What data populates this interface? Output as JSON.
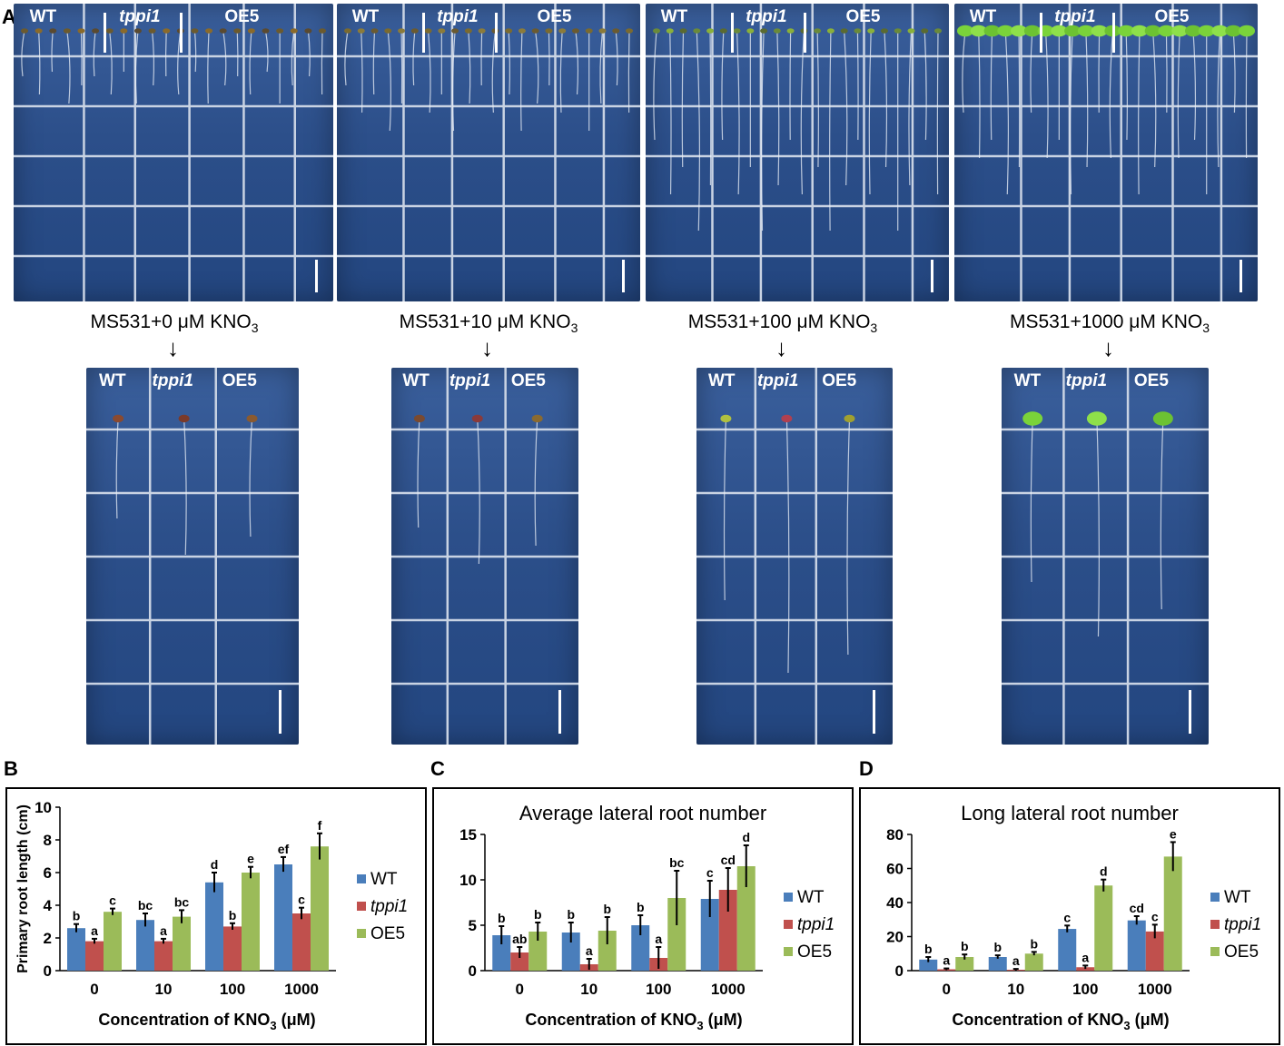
{
  "figure": {
    "panel_a": {
      "letter": "A",
      "genotype_labels": [
        "WT",
        "tppi1",
        "OE5"
      ],
      "media": [
        {
          "text": "MS531+0 μM KNO",
          "sub": "3"
        },
        {
          "text": "MS531+10 μM KNO",
          "sub": "3"
        },
        {
          "text": "MS531+100 μM KNO",
          "sub": "3"
        },
        {
          "text": "MS531+1000 μM KNO",
          "sub": "3"
        }
      ],
      "arrow": "↓",
      "plate_colors": {
        "medium": "#2c4f8a",
        "grid": "#c9d3e3",
        "seedling_leaf": "#7ad33a"
      }
    },
    "panel_letters": {
      "b": "B",
      "c": "C",
      "d": "D"
    }
  },
  "chart_data": [
    {
      "type": "bar",
      "panel": "B",
      "title": "",
      "ylabel": "Primary root length (cm)",
      "xlabel": "Concentration of KNO3 (μM)",
      "xlabel_main": "Concentration of KNO",
      "xlabel_sub": "3",
      "xlabel_unit": " (μM)",
      "categories": [
        "0",
        "10",
        "100",
        "1000"
      ],
      "ylim": [
        0,
        10
      ],
      "yticks": [
        0,
        2,
        4,
        6,
        8,
        10
      ],
      "series": [
        {
          "name": "WT",
          "color": "#4a7ebb",
          "values": [
            2.6,
            3.1,
            5.4,
            6.5
          ],
          "errors": [
            0.25,
            0.4,
            0.6,
            0.45
          ],
          "letters": [
            "b",
            "bc",
            "d",
            "ef"
          ]
        },
        {
          "name": "tppi1",
          "color": "#c0504d",
          "values": [
            1.8,
            1.8,
            2.7,
            3.5
          ],
          "errors": [
            0.15,
            0.15,
            0.2,
            0.35
          ],
          "letters": [
            "a",
            "a",
            "b",
            "c"
          ]
        },
        {
          "name": "OE5",
          "color": "#9bbb59",
          "values": [
            3.6,
            3.3,
            6.0,
            7.6
          ],
          "errors": [
            0.2,
            0.4,
            0.35,
            0.8
          ],
          "letters": [
            "c",
            "bc",
            "e",
            "f"
          ]
        }
      ],
      "legend": "right"
    },
    {
      "type": "bar",
      "panel": "C",
      "title": "Average lateral root number",
      "ylabel": "",
      "xlabel": "Concentration of KNO3 (μM)",
      "xlabel_main": "Concentration of KNO",
      "xlabel_sub": "3",
      "xlabel_unit": " (μM)",
      "categories": [
        "0",
        "10",
        "100",
        "1000"
      ],
      "ylim": [
        0,
        15
      ],
      "yticks": [
        0,
        5,
        10,
        15
      ],
      "series": [
        {
          "name": "WT",
          "color": "#4a7ebb",
          "values": [
            3.9,
            4.2,
            5.0,
            7.9
          ],
          "errors": [
            1.0,
            1.1,
            1.1,
            2.0
          ],
          "letters": [
            "b",
            "b",
            "b",
            "c"
          ]
        },
        {
          "name": "tppi1",
          "color": "#c0504d",
          "values": [
            2.0,
            0.7,
            1.4,
            8.9
          ],
          "errors": [
            0.6,
            0.6,
            1.2,
            2.4
          ],
          "letters": [
            "ab",
            "a",
            "a",
            "cd"
          ]
        },
        {
          "name": "OE5",
          "color": "#9bbb59",
          "values": [
            4.3,
            4.4,
            8.0,
            11.5
          ],
          "errors": [
            1.0,
            1.5,
            3.0,
            2.3
          ],
          "letters": [
            "b",
            "b",
            "bc",
            "d"
          ]
        }
      ],
      "legend": "right"
    },
    {
      "type": "bar",
      "panel": "D",
      "title": "Long lateral root number",
      "ylabel": "",
      "xlabel": "Concentration of KNO3 (μM)",
      "xlabel_main": "Concentration of KNO",
      "xlabel_sub": "3",
      "xlabel_unit": " (μM)",
      "categories": [
        "0",
        "10",
        "100",
        "1000"
      ],
      "ylim": [
        0,
        80
      ],
      "yticks": [
        0,
        20,
        40,
        60,
        80
      ],
      "series": [
        {
          "name": "WT",
          "color": "#4a7ebb",
          "values": [
            6.5,
            8.0,
            24.5,
            29.5
          ],
          "errors": [
            1.5,
            1.0,
            2.0,
            2.5
          ],
          "letters": [
            "b",
            "b",
            "c",
            "cd"
          ]
        },
        {
          "name": "tppi1",
          "color": "#c0504d",
          "values": [
            0.8,
            0.5,
            2.0,
            23.0
          ],
          "errors": [
            0.5,
            0.5,
            1.0,
            4.0
          ],
          "letters": [
            "a",
            "a",
            "a",
            "c"
          ]
        },
        {
          "name": "OE5",
          "color": "#9bbb59",
          "values": [
            8.0,
            10.0,
            50.0,
            67.0
          ],
          "errors": [
            1.5,
            1.0,
            3.5,
            8.5
          ],
          "letters": [
            "b",
            "b",
            "d",
            "e"
          ]
        }
      ],
      "legend": "right"
    }
  ]
}
